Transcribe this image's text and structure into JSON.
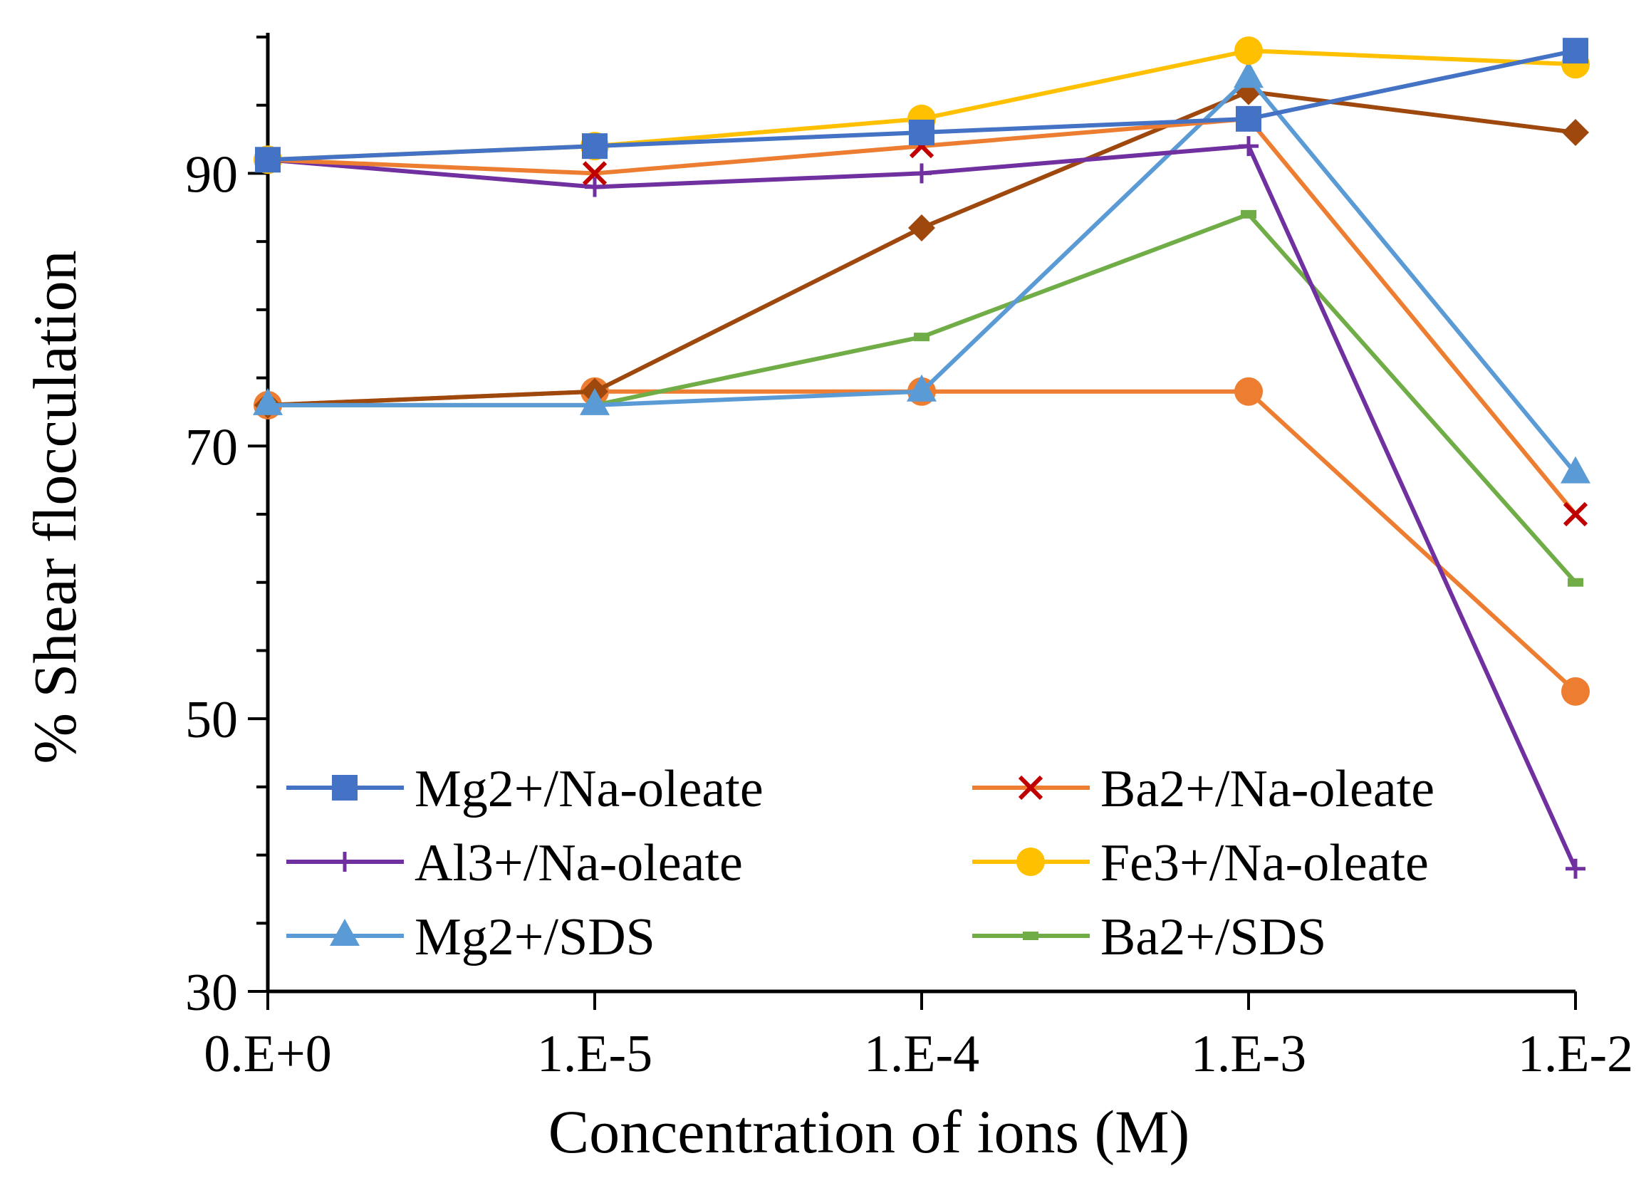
{
  "chart_data": {
    "type": "line",
    "title": "",
    "xlabel": "Concentration of ions (M)",
    "ylabel": "% Shear flocculation",
    "categories": [
      "0.E+0",
      "1.E-5",
      "1.E-4",
      "1.E-3",
      "1.E-2"
    ],
    "ylim": [
      30,
      100
    ],
    "yticks": [
      30,
      50,
      70,
      90
    ],
    "grid": false,
    "legend_position": "bottom-inside, two columns",
    "series": [
      {
        "name": "Mg2+/Na-oleate",
        "color": "#4472C4",
        "marker": "square",
        "values": [
          91,
          92,
          93,
          94,
          99
        ]
      },
      {
        "name": "Ba2+/Na-oleate",
        "color": "#ED7D31",
        "marker": "cross",
        "marker_color": "#C00000",
        "values": [
          91,
          90,
          92,
          94,
          65
        ]
      },
      {
        "name": "Al3+/Na-oleate",
        "color": "#7030A0",
        "marker": "plus",
        "values": [
          91,
          89,
          90,
          92,
          39
        ]
      },
      {
        "name": "Fe3+/Na-oleate",
        "color": "#FFC000",
        "marker": "circle",
        "values": [
          91,
          92,
          94,
          99,
          98
        ]
      },
      {
        "name": "Mg2+/SDS",
        "color": "#5B9BD5",
        "marker": "triangle",
        "values": [
          73,
          73,
          74,
          97,
          68
        ]
      },
      {
        "name": "Ba2+/SDS",
        "color": "#70AD47",
        "marker": "dash",
        "values": [
          73,
          73,
          78,
          87,
          60
        ]
      },
      {
        "name": "",
        "color": "#9E480E",
        "marker": "diamond",
        "in_legend": false,
        "values": [
          73,
          74,
          86,
          96,
          93
        ]
      },
      {
        "name": "",
        "color": "#ED7D31",
        "marker": "circle",
        "in_legend": false,
        "values": [
          73,
          74,
          74,
          74,
          52
        ]
      }
    ]
  }
}
